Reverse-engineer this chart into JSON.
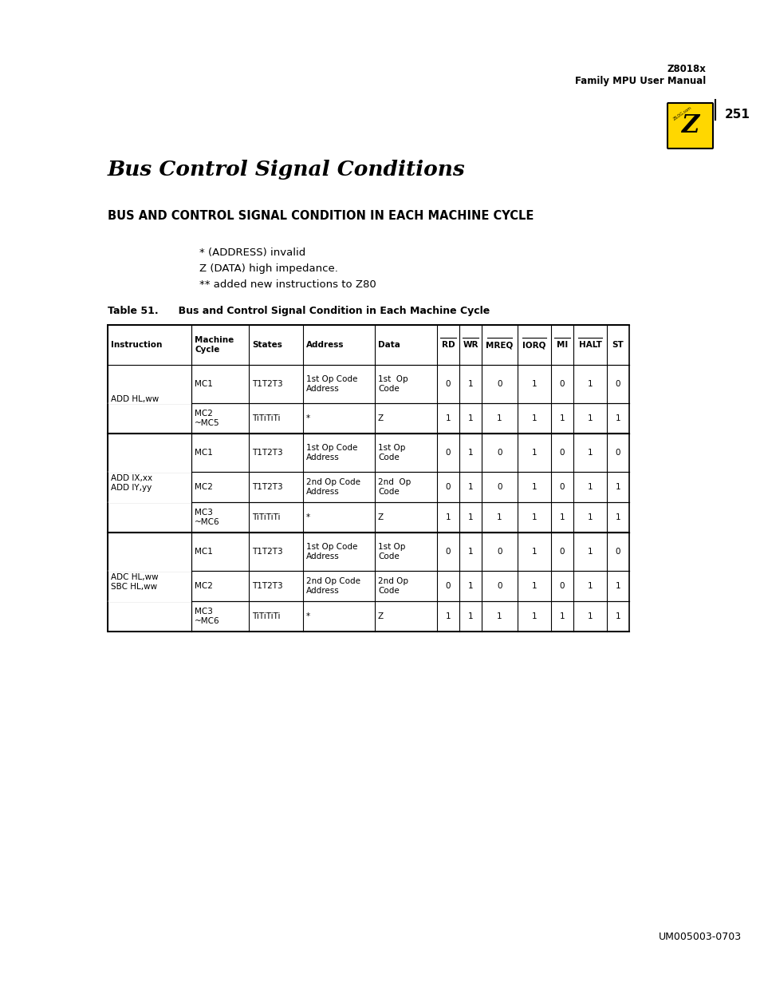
{
  "page_title": "Bus Control Signal Conditions",
  "section_title": "BUS AND CONTROL SIGNAL CONDITION IN EACH MACHINE CYCLE",
  "bullets": [
    "* (ADDRESS) invalid",
    "Z (DATA) high impedance.",
    "** added new instructions to Z80"
  ],
  "table_caption": "Table 51.  Bus and Control Signal Condition in Each Machine Cycle",
  "header_row1": [
    "Instruction",
    "Machine\nCycle",
    "States",
    "Address",
    "Data",
    "RD",
    "WR",
    "MREQ",
    "IORQ",
    "MI",
    "HALT",
    "ST"
  ],
  "overline_cols": [
    "RD",
    "WR",
    "MREQ",
    "IORQ",
    "MI",
    "HALT"
  ],
  "table_rows": [
    [
      "ADD HL,ww",
      "MC1",
      "T1T2T3",
      "1st Op Code\nAddress",
      "1st  Op\nCode",
      "0",
      "1",
      "0",
      "1",
      "0",
      "1",
      "0"
    ],
    [
      "",
      "MC2\n~MC5",
      "TiTiTiTi",
      "*",
      "Z",
      "1",
      "1",
      "1",
      "1",
      "1",
      "1",
      "1"
    ],
    [
      "ADD IX,xx\nADD IY,yy",
      "MC1",
      "T1T2T3",
      "1st Op Code\nAddress",
      "1st Op\nCode",
      "0",
      "1",
      "0",
      "1",
      "0",
      "1",
      "0"
    ],
    [
      "",
      "MC2",
      "T1T2T3",
      "2nd Op Code\nAddress",
      "2nd  Op\nCode",
      "0",
      "1",
      "0",
      "1",
      "0",
      "1",
      "1"
    ],
    [
      "",
      "MC3\n~MC6",
      "TiTiTiTi",
      "*",
      "Z",
      "1",
      "1",
      "1",
      "1",
      "1",
      "1",
      "1"
    ],
    [
      "ADC HL,ww\nSBC HL,ww",
      "MC1",
      "T1T2T3",
      "1st Op Code\nAddress",
      "1st Op\nCode",
      "0",
      "1",
      "0",
      "1",
      "0",
      "1",
      "0"
    ],
    [
      "",
      "MC2",
      "T1T2T3",
      "2nd Op Code\nAddress",
      "2nd Op\nCode",
      "0",
      "1",
      "0",
      "1",
      "0",
      "1",
      "1"
    ],
    [
      "",
      "MC3\n~MC6",
      "TiTiTiTi",
      "*",
      "Z",
      "1",
      "1",
      "1",
      "1",
      "1",
      "1",
      "1"
    ]
  ],
  "instruction_groups": [
    {
      "label": "ADD HL,ww",
      "rows": [
        0,
        1
      ]
    },
    {
      "label": "ADD IX,xx\nADD IY,yy",
      "rows": [
        2,
        3,
        4
      ]
    },
    {
      "label": "ADC HL,ww\nSBC HL,ww",
      "rows": [
        5,
        6,
        7
      ]
    }
  ],
  "header_text": "Z8018x\nFamily MPU User Manual",
  "page_number": "251",
  "footer_text": "UM005003-0703",
  "bg_color": "#ffffff",
  "text_color": "#000000",
  "table_line_color": "#000000"
}
